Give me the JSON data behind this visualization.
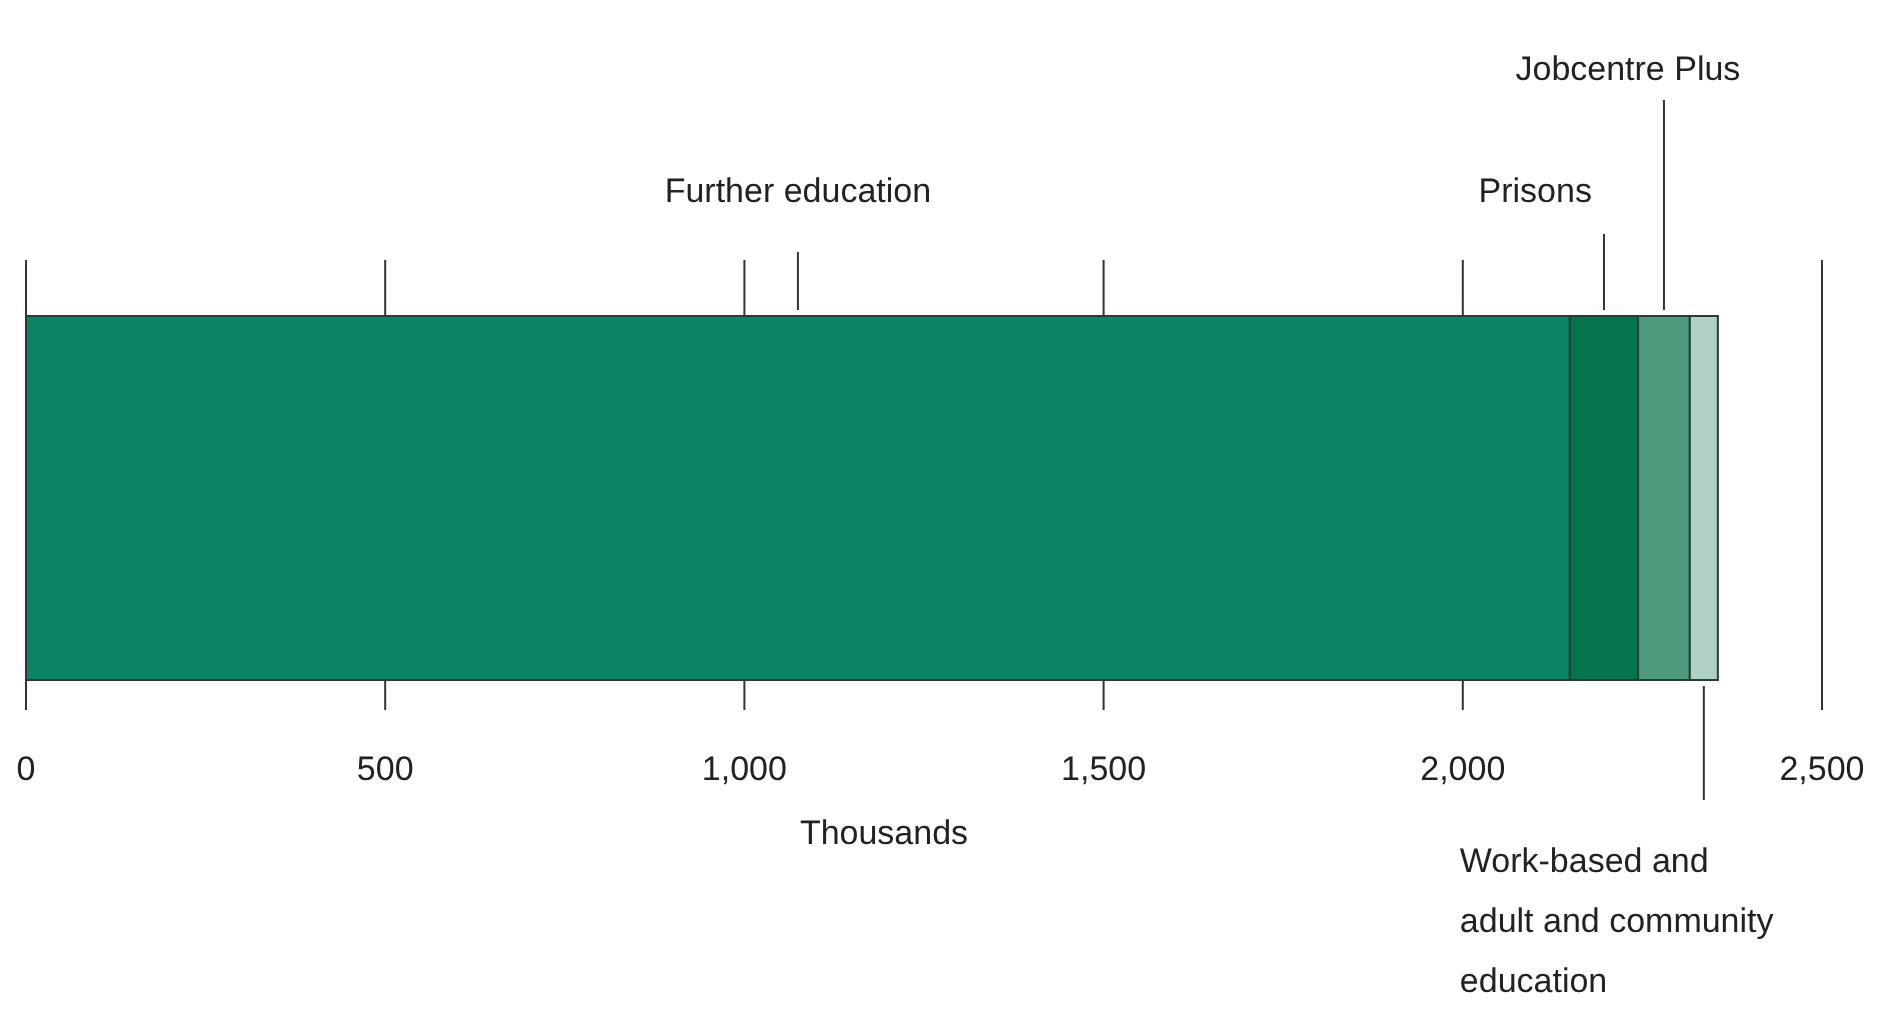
{
  "chart_data": {
    "type": "bar",
    "orientation": "horizontal",
    "stacked": true,
    "categories": [
      null
    ],
    "xlabel": "Thousands",
    "xlim": [
      0,
      2500
    ],
    "xticks": [
      0,
      {
        "value": 500,
        "label": "500"
      },
      {
        "value": 1000,
        "label": "1,000"
      },
      {
        "value": 1500,
        "label": "1,500"
      },
      {
        "value": 2000,
        "label": "2,000"
      },
      {
        "value": 2500,
        "label": "2,500"
      }
    ],
    "grid": "x",
    "legend": false,
    "series": [
      {
        "name": "Further education",
        "color": "#0a8464",
        "values": [
          2149
        ]
      },
      {
        "name": "Prisons",
        "color": "#04744c",
        "values": [
          95
        ]
      },
      {
        "name": "Jobcentre Plus",
        "color": "#4e9a7c",
        "values": [
          72
        ]
      },
      {
        "name": "Work-based and\nadult and community\neducation",
        "color": "#b0d0c4",
        "values": [
          39
        ]
      }
    ]
  }
}
